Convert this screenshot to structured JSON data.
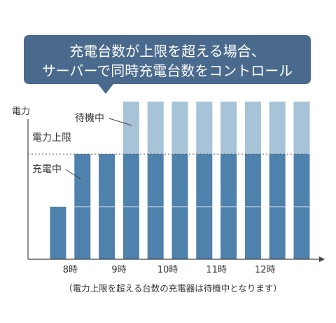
{
  "callout": {
    "line1": "充電台数が上限を超える場合、",
    "line2": "サーバーで同時充電台数をコントロール"
  },
  "chart_data": {
    "type": "bar",
    "ylabel": "電力",
    "x_tick_labels": [
      "8時",
      "9時",
      "10時",
      "11時",
      "12時"
    ],
    "unit_per_charger": 1,
    "power_limit": 2,
    "series": [
      {
        "name": "充電中",
        "values": [
          1,
          2,
          2,
          2,
          2,
          2,
          2,
          2,
          2,
          2,
          2
        ]
      },
      {
        "name": "待機中",
        "values": [
          0,
          0,
          0,
          1,
          1,
          1,
          1,
          1,
          1,
          1,
          1
        ]
      }
    ],
    "annotations": {
      "limit_label": "電力上限",
      "charging_label": "充電中",
      "waiting_label": "待機中"
    },
    "caption": "（電力上限を超える台数の充電器は待機中となります）"
  },
  "colors": {
    "callout_bg": "#4a6a8d",
    "charging": "#4f81ad",
    "waiting": "#a6c3d8",
    "axis": "#444444",
    "limit_line": "#555555",
    "segment_line": "#d9e6f0"
  }
}
